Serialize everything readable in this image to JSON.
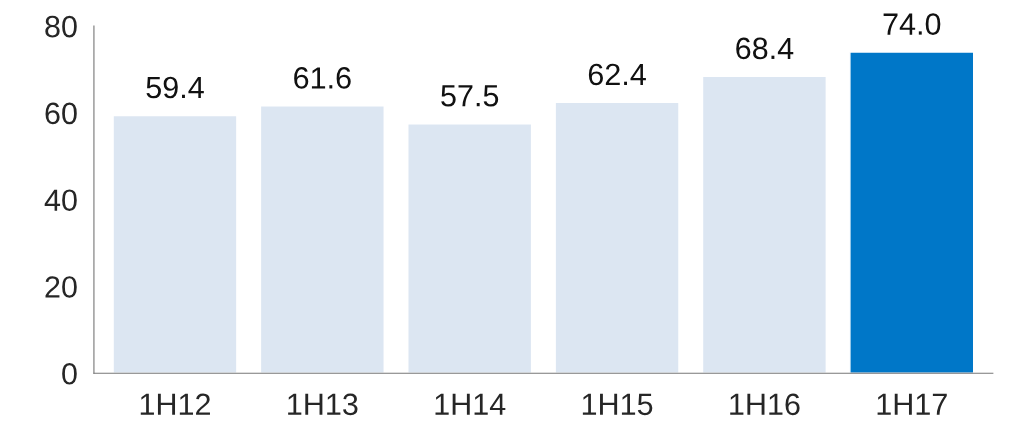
{
  "chart_data": {
    "type": "bar",
    "categories": [
      "1H12",
      "1H13",
      "1H14",
      "1H15",
      "1H16",
      "1H17"
    ],
    "values": [
      59.4,
      61.6,
      57.5,
      62.4,
      68.4,
      74.0
    ],
    "value_labels": [
      "59.4",
      "61.6",
      "57.5",
      "62.4",
      "68.4",
      "74.0"
    ],
    "colors": [
      "#dce6f2",
      "#dce6f2",
      "#dce6f2",
      "#dce6f2",
      "#dce6f2",
      "#0077c8"
    ],
    "ylim": [
      0,
      80
    ],
    "yticks": [
      0,
      20,
      40,
      60,
      80
    ],
    "grid": false,
    "legend": false
  }
}
